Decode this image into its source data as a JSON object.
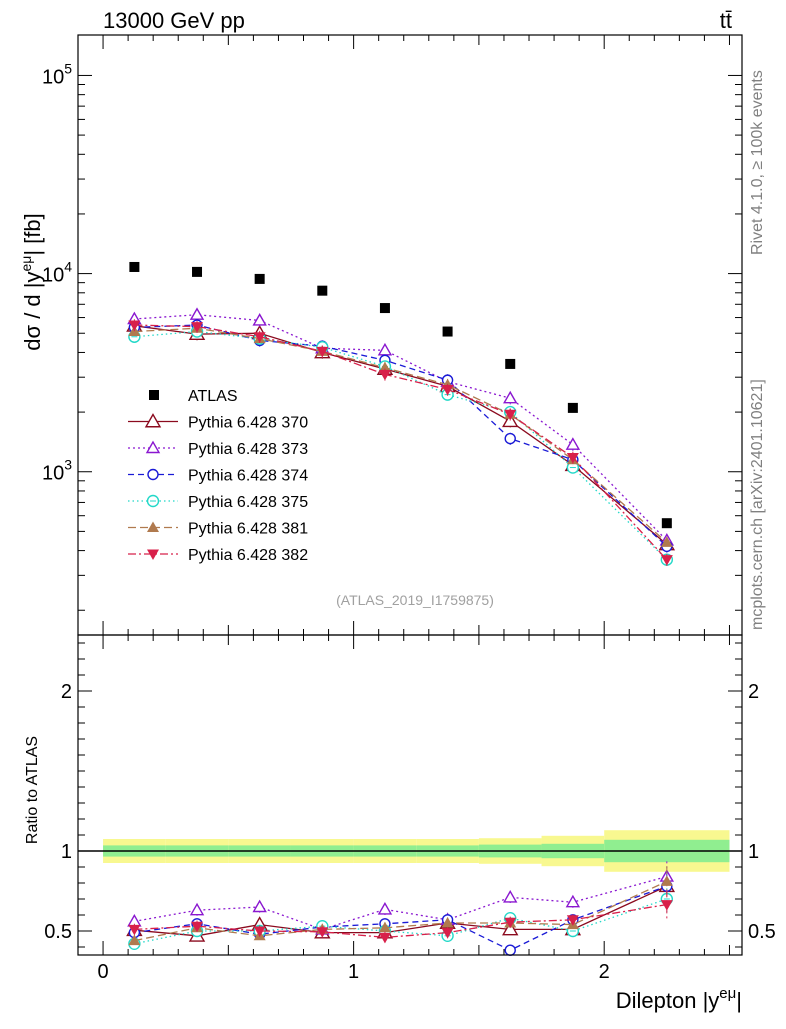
{
  "header": {
    "energy_label": "13000 GeV pp",
    "process_label": "tt̄"
  },
  "side_labels": {
    "rivet": "Rivet 4.1.0, ≥ 100k events",
    "source": "mcplots.cern.ch [arXiv:2401.10621]"
  },
  "analysis_id": "(ATLAS_2019_I1759875)",
  "axis_labels": {
    "y_main": "dσ / d |y",
    "y_main_sup": "eμ",
    "y_main_tail": "| [fb]",
    "y_ratio": "Ratio to ATLAS",
    "x": "Dilepton |y",
    "x_sup": "eμ",
    "x_tail": "|"
  },
  "colors": {
    "atlas": "#000000",
    "p370": "#8b0a1e",
    "p373": "#8a17d0",
    "p374": "#1a1ad6",
    "p375": "#22d8c8",
    "p381": "#b07a4e",
    "p382": "#d8204a",
    "band_outer": "#f8f890",
    "band_inner": "#90ee90"
  },
  "chart_data": {
    "type": "scatter",
    "x": [
      0.125,
      0.375,
      0.625,
      0.875,
      1.125,
      1.375,
      1.625,
      1.875,
      2.25
    ],
    "xlim": [
      -0.1,
      2.55
    ],
    "xticks": [
      {
        "value": 0,
        "label": "0"
      },
      {
        "value": 1,
        "label": "1"
      },
      {
        "value": 2,
        "label": "2"
      }
    ],
    "main_panel": {
      "yscale": "log",
      "ylim": [
        150,
        160000
      ],
      "yticks": [
        {
          "value": 1000,
          "base": "10",
          "exp": "3"
        },
        {
          "value": 10000,
          "base": "10",
          "exp": "4"
        },
        {
          "value": 100000,
          "base": "10",
          "exp": "5"
        }
      ]
    },
    "ratio_panel": {
      "ylim": [
        0.35,
        2.35
      ],
      "yticks": [
        {
          "value": 0.5,
          "label": "0.5"
        },
        {
          "value": 1,
          "label": "1"
        },
        {
          "value": 2,
          "label": "2"
        }
      ],
      "band_edges": [
        0,
        0.25,
        0.5,
        0.75,
        1.0,
        1.25,
        1.5,
        1.75,
        2.0,
        2.5
      ],
      "band_outer": [
        0.075,
        0.075,
        0.075,
        0.075,
        0.075,
        0.075,
        0.08,
        0.095,
        0.13
      ],
      "band_inner": [
        0.035,
        0.035,
        0.035,
        0.035,
        0.035,
        0.035,
        0.04,
        0.045,
        0.07
      ]
    },
    "data": {
      "name": "ATLAS",
      "values": [
        10800,
        10200,
        9400,
        8200,
        6700,
        5100,
        3500,
        2100,
        550
      ]
    },
    "series": [
      {
        "key": "p370",
        "name": "Pythia 6.428 370",
        "marker": "tri-open",
        "dash": "solid",
        "values": [
          5450,
          4950,
          5000,
          4000,
          3300,
          2700,
          1800,
          1080,
          430
        ],
        "ratio": [
          0.505,
          0.47,
          0.54,
          0.49,
          0.49,
          0.55,
          0.51,
          0.51,
          0.78
        ]
      },
      {
        "key": "p373",
        "name": "Pythia 6.428 373",
        "marker": "tri-open-small",
        "dash": "dot",
        "values": [
          5900,
          6200,
          5800,
          4200,
          4100,
          2850,
          2350,
          1370,
          450
        ],
        "ratio": [
          0.56,
          0.63,
          0.65,
          0.51,
          0.635,
          0.57,
          0.71,
          0.68,
          0.84
        ]
      },
      {
        "key": "p374",
        "name": "Pythia 6.428 374",
        "marker": "circle-open",
        "dash": "dash",
        "values": [
          5350,
          5500,
          4600,
          4300,
          3650,
          2900,
          1470,
          1150,
          420
        ],
        "ratio": [
          0.49,
          0.545,
          0.48,
          0.525,
          0.545,
          0.57,
          0.38,
          0.57,
          0.78
        ]
      },
      {
        "key": "p375",
        "name": "Pythia 6.428 375",
        "marker": "circle-open-cross",
        "dash": "dotspace",
        "values": [
          4800,
          5100,
          4700,
          4250,
          3400,
          2450,
          2000,
          1050,
          360
        ],
        "ratio": [
          0.42,
          0.5,
          0.5,
          0.53,
          0.5,
          0.47,
          0.58,
          0.5,
          0.7
        ]
      },
      {
        "key": "p381",
        "name": "Pythia 6.428 381",
        "marker": "tri-filled",
        "dash": "dashlong",
        "values": [
          5100,
          5300,
          4700,
          4050,
          3350,
          2750,
          1950,
          1150,
          440
        ],
        "ratio": [
          0.44,
          0.52,
          0.47,
          0.51,
          0.52,
          0.55,
          0.55,
          0.54,
          0.81
        ]
      },
      {
        "key": "p382",
        "name": "Pythia 6.428 382",
        "marker": "tri-down-filled",
        "dash": "dashdot",
        "values": [
          5500,
          5400,
          4800,
          4050,
          3100,
          2600,
          1950,
          1180,
          360
        ],
        "ratio": [
          0.51,
          0.53,
          0.5,
          0.495,
          0.46,
          0.49,
          0.555,
          0.57,
          0.665
        ]
      }
    ]
  }
}
